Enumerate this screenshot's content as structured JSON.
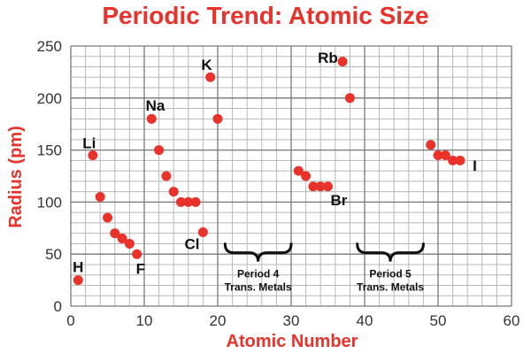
{
  "chart_data": {
    "type": "scatter",
    "title": "Periodic Trend: Atomic Size",
    "xlabel": "Atomic Number",
    "ylabel": "Radius (pm)",
    "xlim": [
      0,
      60
    ],
    "ylim": [
      0,
      250
    ],
    "xticks": [
      0,
      10,
      20,
      30,
      40,
      50,
      60
    ],
    "yticks": [
      0,
      50,
      100,
      150,
      200,
      250
    ],
    "grid": true,
    "point_color": "#e8322a",
    "title_color": "#e8322a",
    "series": [
      {
        "points": [
          {
            "x": 1,
            "y": 25
          },
          {
            "x": 3,
            "y": 145
          },
          {
            "x": 4,
            "y": 105
          },
          {
            "x": 5,
            "y": 85
          },
          {
            "x": 6,
            "y": 70
          },
          {
            "x": 7,
            "y": 65
          },
          {
            "x": 8,
            "y": 60
          },
          {
            "x": 9,
            "y": 50
          },
          {
            "x": 11,
            "y": 180
          },
          {
            "x": 12,
            "y": 150
          },
          {
            "x": 13,
            "y": 125
          },
          {
            "x": 14,
            "y": 110
          },
          {
            "x": 15,
            "y": 100
          },
          {
            "x": 16,
            "y": 100
          },
          {
            "x": 17,
            "y": 100
          },
          {
            "x": 18,
            "y": 71
          },
          {
            "x": 19,
            "y": 220
          },
          {
            "x": 20,
            "y": 180
          },
          {
            "x": 31,
            "y": 130
          },
          {
            "x": 32,
            "y": 125
          },
          {
            "x": 33,
            "y": 115
          },
          {
            "x": 34,
            "y": 115
          },
          {
            "x": 35,
            "y": 115
          },
          {
            "x": 37,
            "y": 235
          },
          {
            "x": 38,
            "y": 200
          },
          {
            "x": 49,
            "y": 155
          },
          {
            "x": 50,
            "y": 145
          },
          {
            "x": 51,
            "y": 145
          },
          {
            "x": 52,
            "y": 140
          },
          {
            "x": 53,
            "y": 140
          }
        ]
      }
    ],
    "annotations": [
      {
        "text": "H",
        "x": 1,
        "y": 38
      },
      {
        "text": "Li",
        "x": 2.5,
        "y": 157
      },
      {
        "text": "F",
        "x": 9.5,
        "y": 36
      },
      {
        "text": "Na",
        "x": 11.5,
        "y": 193
      },
      {
        "text": "Cl",
        "x": 16.5,
        "y": 60
      },
      {
        "text": "K",
        "x": 18.5,
        "y": 232
      },
      {
        "text": "Rb",
        "x": 35,
        "y": 239
      },
      {
        "text": "Br",
        "x": 36.5,
        "y": 102
      },
      {
        "text": "I",
        "x": 55,
        "y": 135
      }
    ],
    "groups": [
      {
        "line1": "Period 4",
        "line2": "Trans. Metals",
        "x_from": 21,
        "x_to": 30,
        "y": 70
      },
      {
        "line1": "Period 5",
        "line2": "Trans. Metals",
        "x_from": 39,
        "x_to": 48,
        "y": 70
      }
    ]
  }
}
